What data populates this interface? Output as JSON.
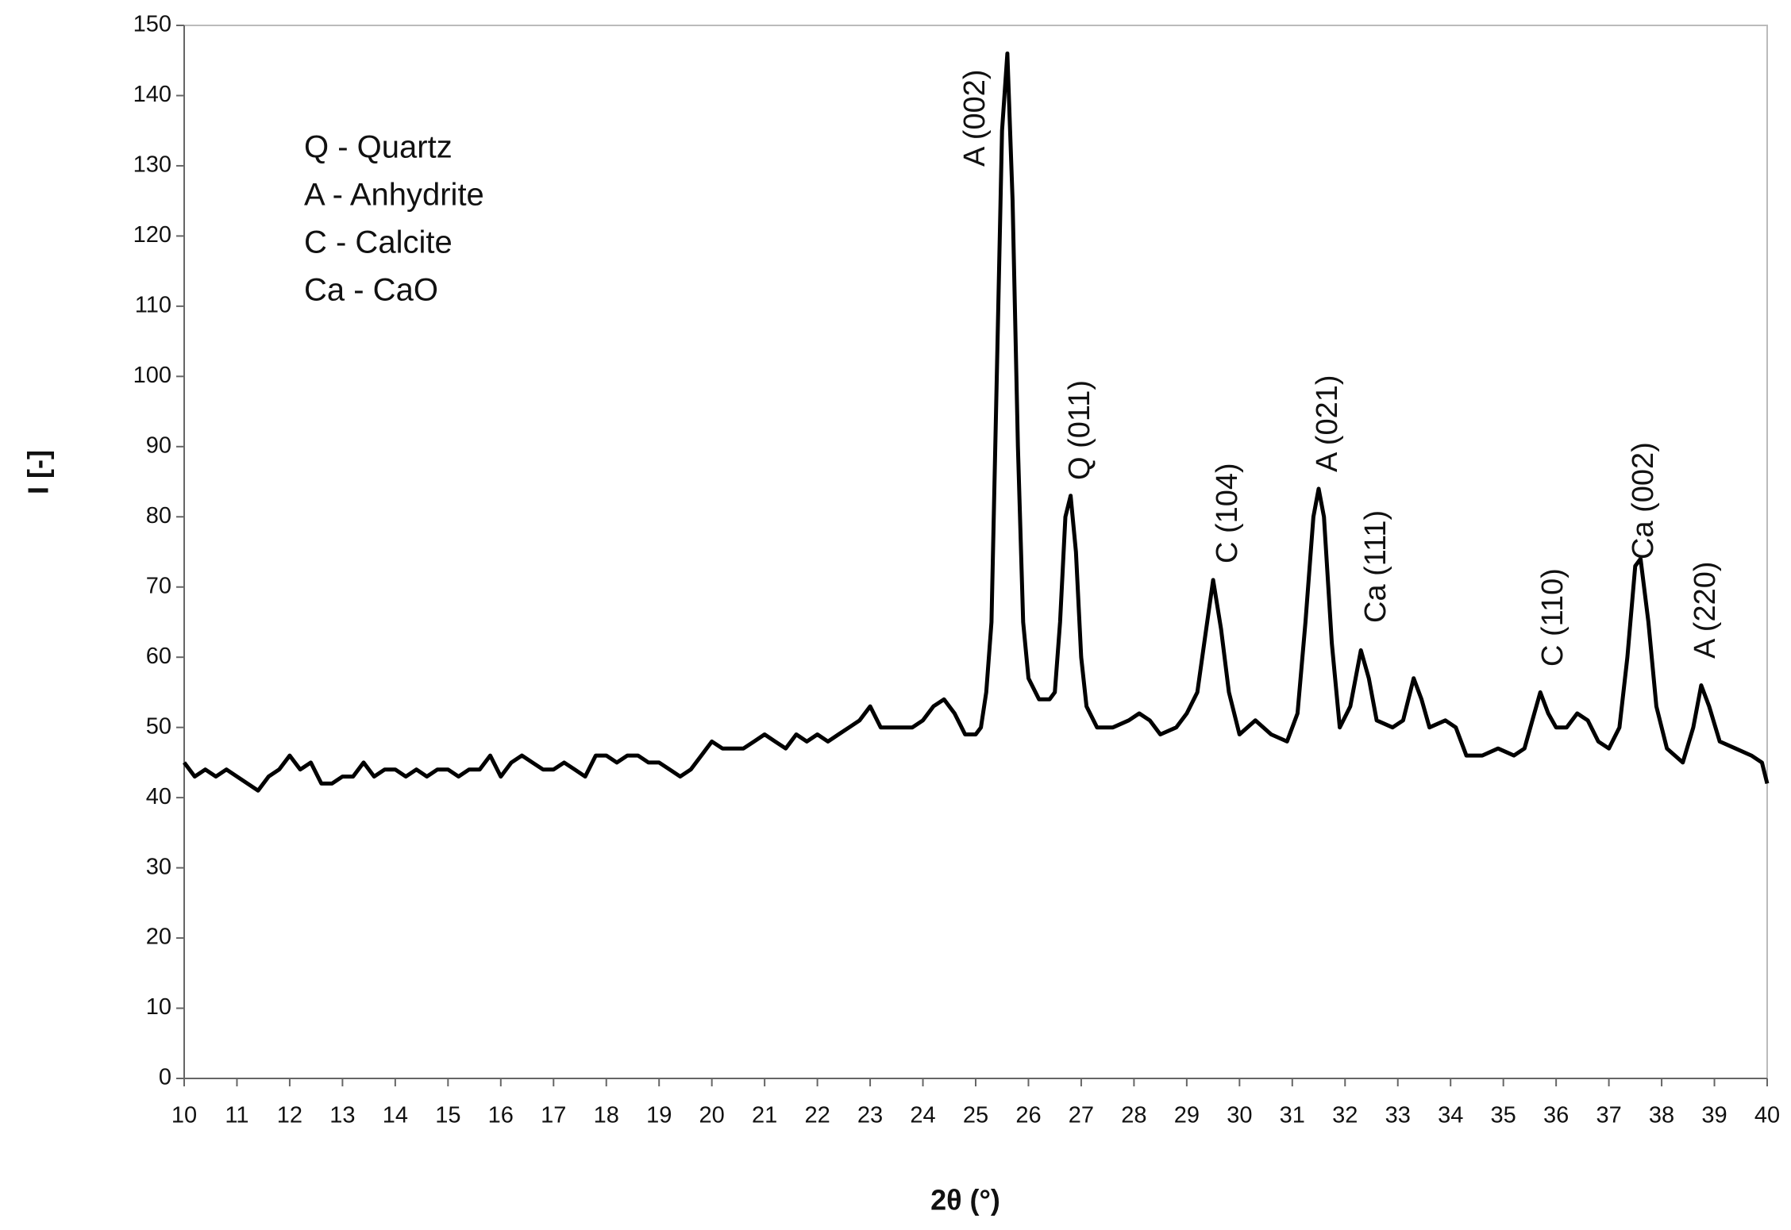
{
  "chart_data": {
    "type": "line",
    "xlabel": "2θ (°)",
    "ylabel": "I [-]",
    "notes": [
      "Q - Quartz",
      "A - Anhydrite",
      "C - Calcite",
      "Ca - CaO"
    ],
    "annotations": [
      "A (002)",
      "Q (011)",
      "C (104)",
      "A (021)",
      "Ca (111)",
      "C (110)",
      "Ca (002)",
      "A (220)"
    ],
    "xlim": [
      10,
      40
    ],
    "xticks": [
      10,
      11,
      12,
      13,
      14,
      15,
      16,
      17,
      18,
      19,
      20,
      21,
      22,
      23,
      24,
      25,
      26,
      27,
      28,
      29,
      30,
      31,
      32,
      33,
      34,
      35,
      36,
      37,
      38,
      39,
      40
    ],
    "ylim": [
      0,
      150
    ],
    "yticks": [
      0,
      10,
      20,
      30,
      40,
      50,
      60,
      70,
      80,
      90,
      100,
      110,
      120,
      130,
      140,
      150
    ],
    "series": [
      {
        "color": "#000000",
        "x": [
          10,
          10.2,
          10.4,
          10.6,
          10.8,
          11,
          11.2,
          11.4,
          11.6,
          11.8,
          12,
          12.2,
          12.4,
          12.6,
          12.8,
          13,
          13.2,
          13.4,
          13.6,
          13.8,
          14,
          14.2,
          14.4,
          14.6,
          14.8,
          15,
          15.2,
          15.4,
          15.6,
          15.8,
          16,
          16.2,
          16.4,
          16.6,
          16.8,
          17,
          17.2,
          17.4,
          17.6,
          17.8,
          18,
          18.2,
          18.4,
          18.6,
          18.8,
          19,
          19.2,
          19.4,
          19.6,
          19.8,
          20,
          20.2,
          20.4,
          20.6,
          20.8,
          21,
          21.2,
          21.4,
          21.6,
          21.8,
          22,
          22.2,
          22.4,
          22.6,
          22.8,
          23,
          23.2,
          23.4,
          23.6,
          23.8,
          24,
          24.2,
          24.4,
          24.6,
          24.8,
          25,
          25.1,
          25.2,
          25.3,
          25.4,
          25.5,
          25.6,
          25.7,
          25.8,
          25.9,
          26,
          26.2,
          26.4,
          26.5,
          26.6,
          26.7,
          26.8,
          26.9,
          27,
          27.1,
          27.3,
          27.6,
          27.9,
          28.1,
          28.3,
          28.5,
          28.8,
          29,
          29.2,
          29.35,
          29.5,
          29.65,
          29.8,
          30,
          30.3,
          30.6,
          30.9,
          31.1,
          31.25,
          31.4,
          31.5,
          31.6,
          31.75,
          31.9,
          32.1,
          32.3,
          32.45,
          32.6,
          32.9,
          33.1,
          33.3,
          33.45,
          33.6,
          33.9,
          34.1,
          34.3,
          34.6,
          34.9,
          35.2,
          35.4,
          35.55,
          35.7,
          35.85,
          36,
          36.2,
          36.4,
          36.6,
          36.8,
          37,
          37.2,
          37.35,
          37.5,
          37.6,
          37.75,
          37.9,
          38.1,
          38.4,
          38.6,
          38.75,
          38.9,
          39.1,
          39.4,
          39.7,
          39.9,
          40
        ],
        "values": [
          45,
          43,
          44,
          43,
          44,
          43,
          42,
          41,
          43,
          44,
          46,
          44,
          45,
          42,
          42,
          43,
          43,
          45,
          43,
          44,
          44,
          43,
          44,
          43,
          44,
          44,
          43,
          44,
          44,
          46,
          43,
          45,
          46,
          45,
          44,
          44,
          45,
          44,
          43,
          46,
          46,
          45,
          46,
          46,
          45,
          45,
          44,
          43,
          44,
          46,
          48,
          47,
          47,
          47,
          48,
          49,
          48,
          47,
          49,
          48,
          49,
          48,
          49,
          50,
          51,
          53,
          50,
          50,
          50,
          50,
          51,
          53,
          54,
          52,
          49,
          49,
          50,
          55,
          65,
          100,
          135,
          146,
          125,
          90,
          65,
          57,
          54,
          54,
          55,
          65,
          80,
          83,
          75,
          60,
          53,
          50,
          50,
          51,
          52,
          51,
          49,
          50,
          52,
          55,
          63,
          71,
          64,
          55,
          49,
          51,
          49,
          48,
          52,
          65,
          80,
          84,
          80,
          62,
          50,
          53,
          61,
          57,
          51,
          50,
          51,
          57,
          54,
          50,
          51,
          50,
          46,
          46,
          47,
          46,
          47,
          51,
          55,
          52,
          50,
          50,
          52,
          51,
          48,
          47,
          50,
          60,
          73,
          74,
          65,
          53,
          47,
          45,
          50,
          56,
          53,
          48,
          47,
          46,
          45,
          42
        ]
      }
    ]
  }
}
